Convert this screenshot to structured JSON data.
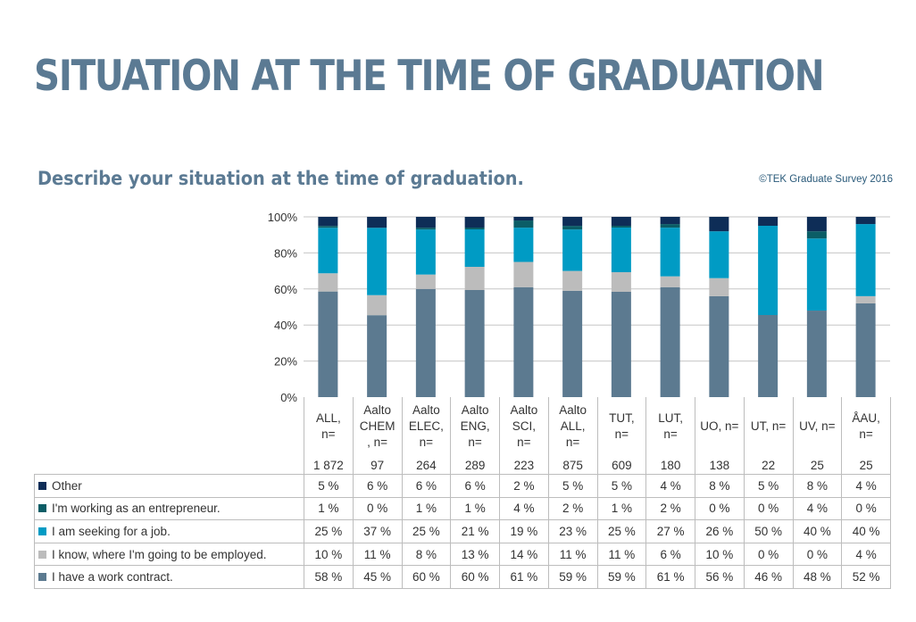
{
  "page": {
    "title": "SITUATION AT THE TIME OF GRADUATION",
    "subtitle": "Describe your situation at the time of graduation.",
    "copyright": "©TEK Graduate Survey 2016"
  },
  "chart_data": {
    "type": "bar",
    "stacked": true,
    "percent": true,
    "title": "Describe your situation at the time of graduation.",
    "ylim": [
      0,
      100
    ],
    "yticks": [
      "0%",
      "20%",
      "40%",
      "60%",
      "80%",
      "100%"
    ],
    "ytick_values": [
      0,
      20,
      40,
      60,
      80,
      100
    ],
    "grid": true,
    "legend": "table-left",
    "categories": [
      {
        "name": "ALL,",
        "n_label": "n=",
        "n": "1 872"
      },
      {
        "name": "Aalto CHEM",
        "n_label": ", n=",
        "n": "97"
      },
      {
        "name": "Aalto ELEC,",
        "n_label": "n=",
        "n": "264"
      },
      {
        "name": "Aalto ENG,",
        "n_label": "n=",
        "n": "289"
      },
      {
        "name": "Aalto SCI,",
        "n_label": "n=",
        "n": "223"
      },
      {
        "name": "Aalto ALL,",
        "n_label": "n=",
        "n": "875"
      },
      {
        "name": "TUT,",
        "n_label": "n=",
        "n": "609"
      },
      {
        "name": "LUT,",
        "n_label": "n=",
        "n": "180"
      },
      {
        "name": "UO, n=",
        "n_label": "",
        "n": "138"
      },
      {
        "name": "UT, n=",
        "n_label": "",
        "n": "22"
      },
      {
        "name": "UV, n=",
        "n_label": "",
        "n": "25"
      },
      {
        "name": "ÅAU,",
        "n_label": "n=",
        "n": "25"
      }
    ],
    "series": [
      {
        "name": "Other",
        "color": "#0e2d57",
        "values": [
          5,
          6,
          6,
          6,
          2,
          5,
          5,
          4,
          8,
          5,
          8,
          4
        ],
        "labels": [
          "5 %",
          "6 %",
          "6 %",
          "6 %",
          "2 %",
          "5 %",
          "5 %",
          "4 %",
          "8 %",
          "5 %",
          "8 %",
          "4 %"
        ]
      },
      {
        "name": "I'm working as an entrepreneur.",
        "color": "#0b5d66",
        "values": [
          1,
          0,
          1,
          1,
          4,
          2,
          1,
          2,
          0,
          0,
          4,
          0
        ],
        "labels": [
          "1 %",
          "0 %",
          "1 %",
          "1 %",
          "4 %",
          "2 %",
          "1 %",
          "2 %",
          "0 %",
          "0 %",
          "4 %",
          "0 %"
        ]
      },
      {
        "name": "I am seeking for a job.",
        "color": "#009bc4",
        "values": [
          25,
          37,
          25,
          21,
          19,
          23,
          25,
          27,
          26,
          50,
          40,
          40
        ],
        "labels": [
          "25 %",
          "37 %",
          "25 %",
          "21 %",
          "19 %",
          "23 %",
          "25 %",
          "27 %",
          "26 %",
          "50 %",
          "40 %",
          "40 %"
        ]
      },
      {
        "name": "I know, where I'm going to be employed.",
        "color": "#bcbcbc",
        "values": [
          10,
          11,
          8,
          13,
          14,
          11,
          11,
          6,
          10,
          0,
          0,
          4
        ],
        "labels": [
          "10 %",
          "11 %",
          "8 %",
          "13 %",
          "14 %",
          "11 %",
          "11 %",
          "6 %",
          "10 %",
          "0 %",
          "0 %",
          "4 %"
        ]
      },
      {
        "name": "I have a work contract.",
        "color": "#5c7a90",
        "values": [
          58,
          45,
          60,
          60,
          61,
          59,
          59,
          61,
          56,
          46,
          48,
          52
        ],
        "labels": [
          "58 %",
          "45 %",
          "60 %",
          "60 %",
          "61 %",
          "59 %",
          "59 %",
          "61 %",
          "56 %",
          "46 %",
          "48 %",
          "52 %"
        ]
      }
    ]
  }
}
